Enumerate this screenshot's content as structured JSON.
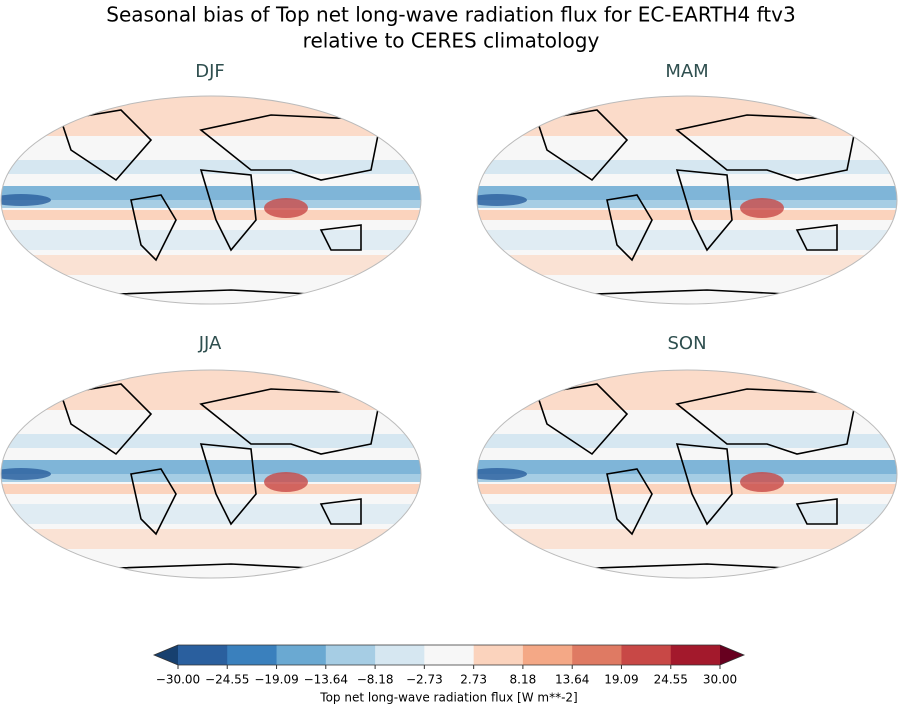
{
  "title": [
    "Seasonal bias of Top net long-wave radiation flux for EC-EARTH4 ftv3",
    "relative to CERES climatology"
  ],
  "panels": [
    {
      "title": "DJF"
    },
    {
      "title": "MAM"
    },
    {
      "title": "JJA"
    },
    {
      "title": "SON"
    }
  ],
  "colorbar": {
    "label": "Top net long-wave radiation flux [W m**-2]",
    "lim": [
      -30,
      30
    ],
    "ticks": [
      {
        "value": -30,
        "label": "−30.00"
      },
      {
        "value": -24.55,
        "label": "−24.55"
      },
      {
        "value": -19.09,
        "label": "−19.09"
      },
      {
        "value": -13.64,
        "label": "−13.64"
      },
      {
        "value": -8.18,
        "label": "−8.18"
      },
      {
        "value": -2.73,
        "label": "−2.73"
      },
      {
        "value": 2.73,
        "label": "2.73"
      },
      {
        "value": 8.18,
        "label": "8.18"
      },
      {
        "value": 13.64,
        "label": "13.64"
      },
      {
        "value": 19.09,
        "label": "19.09"
      },
      {
        "value": 24.55,
        "label": "24.55"
      },
      {
        "value": 30,
        "label": "30.00"
      }
    ],
    "colors": [
      "#2a5f9e",
      "#3a80bd",
      "#6aa9d2",
      "#a6cde4",
      "#d6e7f1",
      "#f7f7f7",
      "#fbd3bd",
      "#f4a886",
      "#df7a63",
      "#c84846",
      "#a3192c"
    ],
    "under_color": "#17406f",
    "over_color": "#67001f"
  }
}
